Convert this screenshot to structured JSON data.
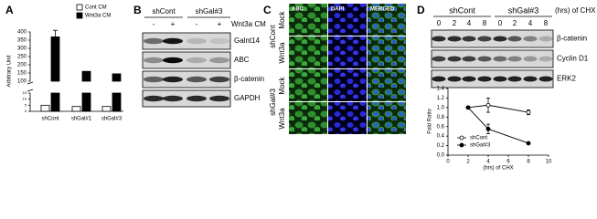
{
  "panel_a": {
    "letter": "A",
    "y_label": "Arbitrary Unit",
    "categories": [
      "shCont",
      "shGal#1",
      "shGal#3"
    ],
    "series": [
      {
        "name": "Cont CM",
        "color": "#ffffff",
        "values": [
          5,
          4,
          4
        ]
      },
      {
        "name": "Wnt3a CM",
        "color": "#000000",
        "values": [
          370,
          160,
          145
        ],
        "errors": [
          40,
          null,
          null
        ]
      }
    ],
    "upper_ylim": [
      100,
      400
    ],
    "upper_yticks": [
      100,
      150,
      200,
      250,
      300,
      350,
      400
    ],
    "lower_ylim": [
      0,
      15
    ],
    "lower_yticks": [
      0,
      5,
      10,
      15
    ]
  },
  "panel_b": {
    "letter": "B",
    "groups": [
      "shCont",
      "shGal#3"
    ],
    "treatment_signs": [
      "-",
      "+",
      "-",
      "+"
    ],
    "treatment_label": "Wnt3a CM",
    "blots": [
      "Galnt14",
      "ABC",
      "β-catenin",
      "GAPDH"
    ]
  },
  "panel_c": {
    "letter": "C",
    "channels": [
      "ABC",
      "DAPI",
      "MERGED"
    ],
    "groups": [
      {
        "name": "shCont",
        "rows": [
          "Mock",
          "Wnt3a"
        ]
      },
      {
        "name": "shGal#3",
        "rows": [
          "Mock",
          "Wnt3a"
        ]
      }
    ]
  },
  "panel_d": {
    "letter": "D",
    "groups": [
      "shCont",
      "shGal#3"
    ],
    "time_unit": "(hrs) of CHX",
    "time_points": [
      0,
      2,
      4,
      8
    ],
    "blots": [
      "β-catenin",
      "Cyclin D1",
      "ERK2"
    ],
    "chart": {
      "type": "line",
      "x_label": "(hrs) of CHX",
      "y_label": "Fold Ratio",
      "xlim": [
        0,
        10
      ],
      "xticks": [
        0,
        2,
        4,
        6,
        8,
        10
      ],
      "ylim": [
        0,
        1.4
      ],
      "yticks": [
        {
          "value": 0,
          "label": "0.0"
        },
        {
          "value": 0.2,
          "label": "0.2"
        },
        {
          "value": 0.4,
          "label": "0.4"
        },
        {
          "value": 0.6,
          "label": "0.6"
        },
        {
          "value": 0.8,
          "label": "0.8"
        },
        {
          "value": 1,
          "label": "1.0"
        },
        {
          "value": 1.2,
          "label": "1.2"
        },
        {
          "value": 1.4,
          "label": "1.4"
        }
      ],
      "series": [
        {
          "name": "shCont",
          "color": "#000000",
          "filled": false,
          "x": [
            2,
            4,
            8
          ],
          "values": [
            1.0,
            1.05,
            0.9
          ],
          "errors": [
            0,
            0.15,
            0.05
          ]
        },
        {
          "name": "shGal#3",
          "color": "#000000",
          "filled": true,
          "x": [
            2,
            4,
            8
          ],
          "values": [
            1.0,
            0.55,
            0.25
          ],
          "errors": [
            0,
            0.1,
            0.02
          ]
        }
      ]
    }
  }
}
